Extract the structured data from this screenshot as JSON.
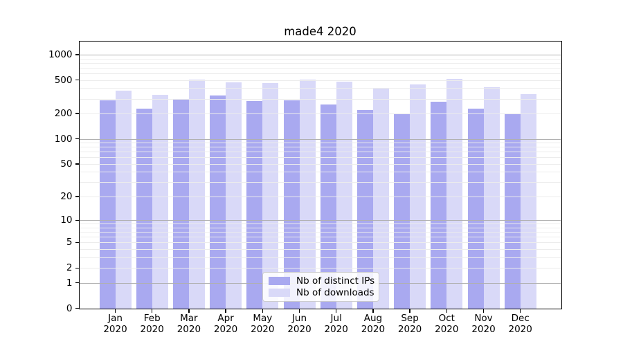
{
  "chart_data": {
    "type": "bar",
    "title": "made4 2020",
    "categories": [
      "Jan",
      "Feb",
      "Mar",
      "Apr",
      "May",
      "Jun",
      "Jul",
      "Aug",
      "Sep",
      "Oct",
      "Nov",
      "Dec"
    ],
    "category_year": "2020",
    "series": [
      {
        "name": "Nb of distinct IPs",
        "color": "#a9a9f0",
        "values": [
          285,
          230,
          292,
          327,
          284,
          288,
          257,
          220,
          198,
          279,
          231,
          200
        ]
      },
      {
        "name": "Nb of downloads",
        "color": "#d9d9f8",
        "values": [
          371,
          337,
          508,
          470,
          464,
          506,
          483,
          395,
          447,
          518,
          414,
          342
        ]
      }
    ],
    "yscale": "log1p",
    "ylim": [
      0,
      1430
    ],
    "yticks": [
      0,
      1,
      2,
      5,
      10,
      20,
      50,
      100,
      200,
      500,
      1000
    ],
    "grid": true,
    "major_grid_values": [
      1,
      10,
      100,
      1000
    ],
    "minor_grid_values": [
      2,
      3,
      4,
      5,
      6,
      7,
      8,
      9,
      20,
      30,
      40,
      50,
      60,
      70,
      80,
      90,
      200,
      300,
      400,
      500,
      600,
      700,
      800,
      900
    ],
    "legend_position": "lower center"
  },
  "colors": {
    "major_grid": "#b0b0b0",
    "minor_grid": "#ececec",
    "axis": "#000000",
    "background": "#ffffff"
  }
}
